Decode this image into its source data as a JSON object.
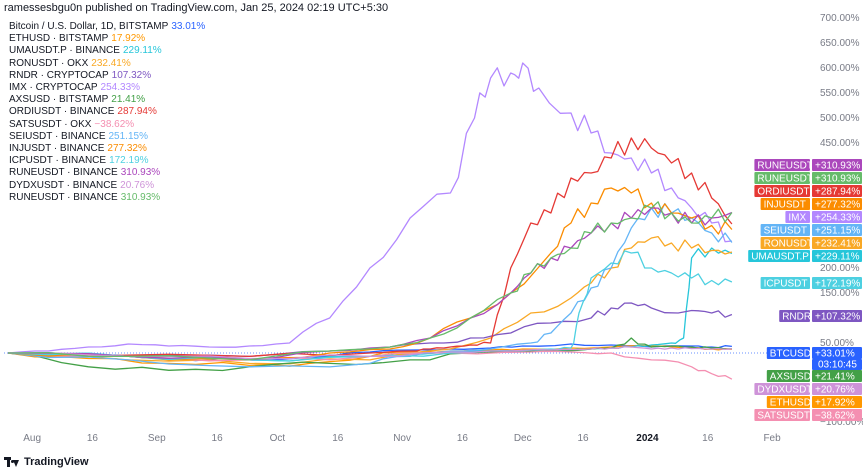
{
  "header": {
    "publisher": "ramessesbgu0n published on TradingView.com, Jan 25, 2024 02:19 UTC+5:30"
  },
  "footer": {
    "brand": "TradingView"
  },
  "colors": {
    "btc": "#2962ff",
    "eth": "#ff9800",
    "uma": "#26c6da",
    "ron": "#f9a825",
    "rndr": "#7e57c2",
    "imx": "#b388ff",
    "axs": "#43a047",
    "ordi": "#e53935",
    "sats": "#f48fb1",
    "sei": "#64b5f6",
    "inj": "#fb8c00",
    "icp": "#4dd0e1",
    "rune": "#ab47bc",
    "dydx": "#ce93d8",
    "rune2": "#66bb6a"
  },
  "legend": [
    {
      "label": "Bitcoin / U.S. Dollar, 1D, BITSTAMP",
      "value": "33.01%",
      "color": "#2962ff"
    },
    {
      "label": "ETHUSD · BITSTAMP",
      "value": "17.92%",
      "color": "#ff9800"
    },
    {
      "label": "UMAUSDT.P · BINANCE",
      "value": "229.11%",
      "color": "#26c6da"
    },
    {
      "label": "RONUSDT · OKX",
      "value": "232.41%",
      "color": "#f9a825"
    },
    {
      "label": "RNDR · CRYPTOCAP",
      "value": "107.32%",
      "color": "#7e57c2"
    },
    {
      "label": "IMX · CRYPTOCAP",
      "value": "254.33%",
      "color": "#b388ff"
    },
    {
      "label": "AXSUSD · BITSTAMP",
      "value": "21.41%",
      "color": "#43a047"
    },
    {
      "label": "ORDIUSDT · BINANCE",
      "value": "287.94%",
      "color": "#e53935"
    },
    {
      "label": "SATSUSDT · OKX",
      "value": "−38.62%",
      "color": "#f48fb1"
    },
    {
      "label": "SEIUSDT · BINANCE",
      "value": "251.15%",
      "color": "#64b5f6"
    },
    {
      "label": "INJUSDT · BINANCE",
      "value": "277.32%",
      "color": "#fb8c00"
    },
    {
      "label": "ICPUSDT · BINANCE",
      "value": "172.19%",
      "color": "#4dd0e1"
    },
    {
      "label": "RUNEUSDT · BINANCE",
      "value": "310.93%",
      "color": "#ab47bc"
    },
    {
      "label": "DYDXUSDT · BINANCE",
      "value": "20.76%",
      "color": "#ce93d8"
    },
    {
      "label": "RUNEUSDT · BINANCE",
      "value": "310.93%",
      "color": "#66bb6a"
    }
  ],
  "chart_data": {
    "type": "line",
    "title": "Bitcoin / U.S. Dollar, 1D, BITSTAMP — percent change comparison",
    "ylim": [
      -100,
      700
    ],
    "y_ticks": [
      -100,
      50,
      100,
      150,
      200,
      250,
      300,
      350,
      400,
      450,
      500,
      550,
      600,
      650,
      700
    ],
    "y_tick_labels": [
      "−100.00%",
      "50.00%",
      "100.00%",
      "150.00%",
      "200.00%",
      "250.00%",
      "300.00%",
      "350.00%",
      "400.00%",
      "450.00%",
      "500.00%",
      "550.00%",
      "600.00%",
      "650.00%",
      "700.00%"
    ],
    "x_start_day": 0,
    "x_end_day": 187,
    "x_ticks": [
      {
        "label": "Aug",
        "day": 6,
        "bold": false
      },
      {
        "label": "16",
        "day": 21,
        "bold": false
      },
      {
        "label": "Sep",
        "day": 37,
        "bold": false
      },
      {
        "label": "16",
        "day": 52,
        "bold": false
      },
      {
        "label": "Oct",
        "day": 67,
        "bold": false
      },
      {
        "label": "16",
        "day": 82,
        "bold": false
      },
      {
        "label": "Nov",
        "day": 98,
        "bold": false
      },
      {
        "label": "16",
        "day": 113,
        "bold": false
      },
      {
        "label": "Dec",
        "day": 128,
        "bold": false
      },
      {
        "label": "16",
        "day": 143,
        "bold": false
      },
      {
        "label": "2024",
        "day": 159,
        "bold": true
      },
      {
        "label": "16",
        "day": 174,
        "bold": false
      },
      {
        "label": "Feb",
        "day": 190,
        "bold": false
      }
    ],
    "reference_line": 0,
    "countdown": "03:10:45",
    "series": [
      {
        "name": "BTCUSD",
        "tag": "BTCUSD",
        "last": "+33.01%",
        "color": "#2962ff",
        "x": [
          0,
          20,
          40,
          60,
          75,
          90,
          100,
          110,
          120,
          128,
          140,
          150,
          160,
          170,
          175,
          180
        ],
        "y": [
          0,
          -5,
          -8,
          -10,
          -6,
          5,
          15,
          20,
          25,
          35,
          45,
          40,
          30,
          35,
          30,
          33
        ]
      },
      {
        "name": "ETHUSD",
        "tag": "ETHUSD",
        "last": "+17.92%",
        "color": "#ff9800",
        "x": [
          0,
          20,
          40,
          60,
          75,
          90,
          100,
          110,
          120,
          128,
          140,
          150,
          160,
          170,
          175,
          180
        ],
        "y": [
          0,
          -8,
          -15,
          -18,
          -15,
          -5,
          5,
          10,
          15,
          20,
          25,
          30,
          35,
          25,
          20,
          18
        ]
      },
      {
        "name": "UMAUSDT.P",
        "tag": "UMAUSDT.P",
        "last": "+229.11%",
        "color": "#26c6da",
        "x": [
          0,
          30,
          60,
          90,
          110,
          130,
          140,
          145,
          150,
          155,
          160,
          165,
          168,
          170,
          175,
          180
        ],
        "y": [
          0,
          -5,
          -10,
          -5,
          5,
          10,
          15,
          20,
          25,
          30,
          40,
          50,
          60,
          220,
          240,
          229
        ]
      },
      {
        "name": "RONUSDT",
        "tag": "RONUSDT",
        "last": "+232.41%",
        "color": "#f9a825",
        "x": [
          0,
          30,
          60,
          90,
          110,
          120,
          130,
          140,
          145,
          150,
          155,
          160,
          165,
          170,
          175,
          180
        ],
        "y": [
          0,
          -10,
          -15,
          -10,
          20,
          60,
          110,
          140,
          170,
          200,
          240,
          260,
          250,
          240,
          235,
          232
        ]
      },
      {
        "name": "RNDR",
        "tag": "RNDR",
        "last": "+107.32%",
        "color": "#7e57c2",
        "x": [
          0,
          30,
          60,
          80,
          95,
          105,
          115,
          125,
          135,
          145,
          150,
          155,
          160,
          170,
          175,
          180
        ],
        "y": [
          0,
          -5,
          -5,
          10,
          30,
          50,
          60,
          70,
          90,
          100,
          120,
          130,
          120,
          115,
          110,
          107
        ]
      },
      {
        "name": "IMX",
        "tag": "IMX",
        "last": "+254.33%",
        "color": "#b388ff",
        "x": [
          0,
          10,
          20,
          30,
          40,
          50,
          60,
          70,
          80,
          90,
          100,
          110,
          116,
          120,
          125,
          128,
          132,
          140,
          145,
          150,
          155,
          160,
          165,
          170,
          175,
          180
        ],
        "y": [
          0,
          10,
          30,
          45,
          35,
          30,
          35,
          50,
          100,
          200,
          300,
          350,
          500,
          580,
          590,
          610,
          560,
          510,
          470,
          430,
          420,
          390,
          360,
          320,
          290,
          254
        ]
      },
      {
        "name": "AXSUSD",
        "tag": "AXSUSD",
        "last": "+21.41%",
        "color": "#43a047",
        "x": [
          0,
          20,
          40,
          60,
          80,
          100,
          115,
          125,
          135,
          145,
          150,
          155,
          160,
          165,
          170,
          175,
          180
        ],
        "y": [
          0,
          -20,
          -25,
          -20,
          -15,
          -10,
          0,
          5,
          10,
          20,
          25,
          60,
          30,
          35,
          30,
          25,
          21
        ]
      },
      {
        "name": "ORDIUSDT",
        "tag": "ORDIUSDT",
        "last": "+287.94%",
        "color": "#e53935",
        "x": [
          0,
          60,
          90,
          100,
          105,
          110,
          115,
          120,
          125,
          130,
          135,
          140,
          145,
          150,
          155,
          160,
          165,
          170,
          175,
          180
        ],
        "y": [
          0,
          -5,
          0,
          10,
          20,
          30,
          40,
          50,
          200,
          290,
          310,
          380,
          390,
          420,
          460,
          440,
          410,
          390,
          340,
          288
        ]
      },
      {
        "name": "SATSUSDT",
        "tag": "SATSUSDT",
        "last": "−38.62%",
        "color": "#f48fb1",
        "x": [
          0,
          30,
          60,
          90,
          110,
          130,
          140,
          150,
          160,
          170,
          175,
          180
        ],
        "y": [
          0,
          -5,
          -10,
          -5,
          0,
          5,
          5,
          0,
          -10,
          -20,
          -30,
          -38
        ]
      },
      {
        "name": "SEIUSDT",
        "tag": "SEIUSDT",
        "last": "+251.15%",
        "color": "#64b5f6",
        "x": [
          0,
          30,
          60,
          90,
          100,
          110,
          120,
          130,
          135,
          140,
          145,
          150,
          155,
          160,
          165,
          170,
          175,
          180
        ],
        "y": [
          0,
          -10,
          -20,
          -15,
          -5,
          10,
          20,
          50,
          70,
          110,
          160,
          200,
          280,
          320,
          310,
          300,
          270,
          251
        ]
      },
      {
        "name": "INJUSDT",
        "tag": "INJUSDT",
        "last": "+277.32%",
        "color": "#fb8c00",
        "x": [
          0,
          30,
          60,
          80,
          95,
          105,
          115,
          125,
          135,
          140,
          145,
          150,
          155,
          160,
          165,
          170,
          175,
          180
        ],
        "y": [
          0,
          -5,
          -10,
          0,
          20,
          60,
          100,
          150,
          230,
          290,
          330,
          360,
          350,
          330,
          310,
          300,
          285,
          277
        ]
      },
      {
        "name": "ICPUSDT",
        "tag": "ICPUSDT",
        "last": "+172.19%",
        "color": "#4dd0e1",
        "x": [
          0,
          30,
          60,
          90,
          110,
          125,
          135,
          140,
          142,
          145,
          150,
          155,
          160,
          165,
          170,
          175,
          180
        ],
        "y": [
          0,
          -5,
          -10,
          -5,
          0,
          10,
          20,
          25,
          110,
          180,
          210,
          230,
          200,
          190,
          180,
          175,
          172
        ]
      },
      {
        "name": "RUNEUSDT",
        "tag": "RUNEUSDT",
        "last": "+310.93%",
        "color": "#ab47bc",
        "x": [
          0,
          30,
          60,
          80,
          95,
          105,
          115,
          125,
          130,
          135,
          140,
          145,
          150,
          155,
          160,
          165,
          170,
          175,
          180
        ],
        "y": [
          0,
          -5,
          -10,
          10,
          30,
          60,
          100,
          150,
          190,
          220,
          240,
          270,
          290,
          300,
          320,
          310,
          290,
          300,
          311
        ]
      },
      {
        "name": "DYDXUSDT",
        "tag": "DYDXUSDT",
        "last": "+20.76%",
        "color": "#ce93d8",
        "x": [
          0,
          30,
          60,
          90,
          110,
          125,
          135,
          145,
          150,
          155,
          160,
          165,
          170,
          175,
          180
        ],
        "y": [
          0,
          -5,
          -8,
          -5,
          5,
          10,
          15,
          20,
          25,
          30,
          20,
          25,
          22,
          20,
          21
        ]
      },
      {
        "name": "RUNEUSDT",
        "tag": "RUNEUSDT",
        "last": "+310.93%",
        "color": "#66bb6a",
        "x": [
          0,
          30,
          60,
          80,
          95,
          105,
          115,
          125,
          130,
          135,
          140,
          145,
          150,
          155,
          160,
          165,
          170,
          175,
          180
        ],
        "y": [
          0,
          -5,
          -10,
          10,
          30,
          60,
          100,
          150,
          190,
          220,
          240,
          270,
          290,
          300,
          320,
          310,
          290,
          300,
          311
        ]
      }
    ]
  }
}
